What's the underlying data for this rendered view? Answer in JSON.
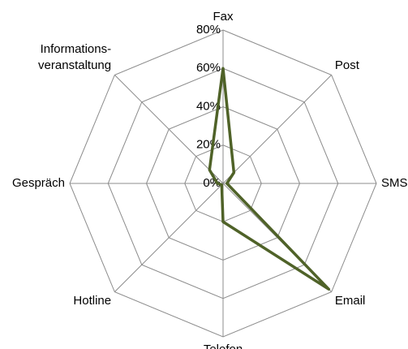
{
  "chart_data": {
    "type": "radar",
    "categories": [
      "Fax",
      "Post",
      "SMS",
      "Email",
      "Telefon",
      "Hotline",
      "Gespräch",
      "Informations-\nveranstaltung"
    ],
    "series": [
      {
        "color": "#4f6228",
        "values": [
          60,
          8,
          2,
          78,
          20,
          1,
          3,
          10
        ]
      }
    ],
    "ylim": [
      0,
      80
    ],
    "yticks": [
      {
        "value": 0,
        "label": "0%"
      },
      {
        "value": 20,
        "label": "20%"
      },
      {
        "value": 40,
        "label": "40%"
      },
      {
        "value": 60,
        "label": "60%"
      },
      {
        "value": 80,
        "label": "80%"
      }
    ],
    "grid": true
  }
}
